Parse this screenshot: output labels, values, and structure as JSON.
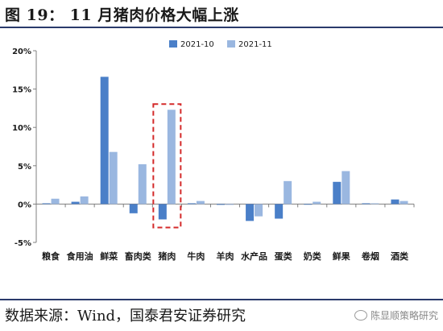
{
  "header": {
    "title": "图 19： 11 月猪肉价格大幅上涨"
  },
  "footer": {
    "source": "数据来源：Wind，国泰君安证券研究",
    "watermark": "陈显顺策略研究",
    "watermark_icon": "wechat-icon"
  },
  "colors": {
    "series_1": "#4a7fc8",
    "series_2": "#9ab7e0",
    "highlight_box": "#d42a2a",
    "axis": "#7f7f7f"
  },
  "chart_data": {
    "type": "bar",
    "title": "",
    "xlabel": "",
    "ylabel": "",
    "ylim": [
      -5,
      20
    ],
    "yticks": [
      -5,
      0,
      5,
      10,
      15,
      20
    ],
    "ytick_labels": [
      "-5%",
      "0%",
      "5%",
      "10%",
      "15%",
      "20%"
    ],
    "grid": false,
    "legend_position": "top-center",
    "categories": [
      "粮食",
      "食用油",
      "鲜菜",
      "畜肉类",
      "猪肉",
      "牛肉",
      "羊肉",
      "水产品",
      "蛋类",
      "奶类",
      "鲜果",
      "卷烟",
      "酒类"
    ],
    "series": [
      {
        "name": "2021-10",
        "values": [
          0.1,
          0.3,
          16.6,
          -1.2,
          -2.0,
          0.1,
          -0.1,
          -2.2,
          -1.9,
          0.0,
          2.9,
          0.1,
          0.6
        ]
      },
      {
        "name": "2021-11",
        "values": [
          0.7,
          1.0,
          6.8,
          5.2,
          12.3,
          0.4,
          -0.1,
          -1.6,
          3.0,
          0.3,
          4.3,
          0.1,
          0.4
        ]
      }
    ],
    "highlight_category": "猪肉"
  }
}
